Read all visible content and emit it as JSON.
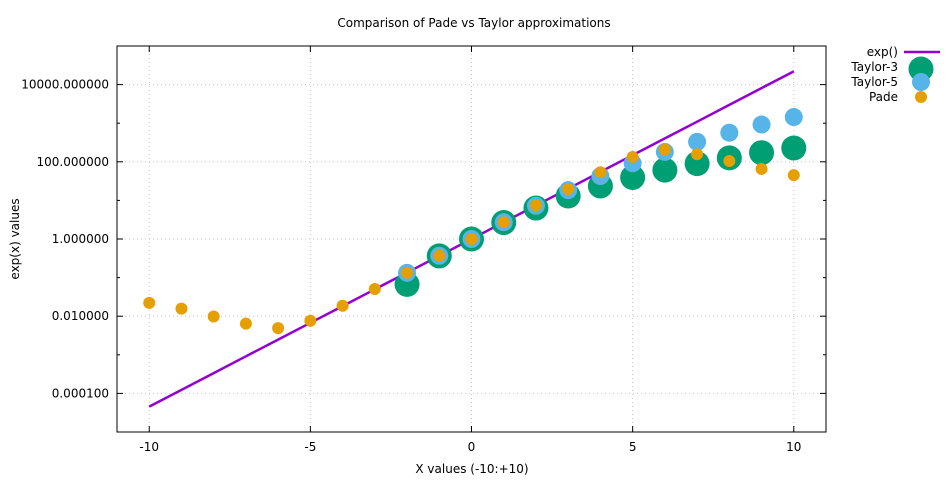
{
  "chart_data": {
    "type": "scatter",
    "title": "Comparison of Pade vs Taylor approximations",
    "xlabel": "X values (-10:+10)",
    "ylabel": "exp(x) values",
    "xlim": [
      -11,
      11
    ],
    "ylim": [
      1e-05,
      100000
    ],
    "yscale": "log",
    "grid": true,
    "legend_position": "top-right outside",
    "x_ticks": [
      -10,
      -5,
      0,
      5,
      10
    ],
    "x_tick_labels": [
      "-10",
      "-5",
      "0",
      "5",
      "10"
    ],
    "y_ticks": [
      0.0001,
      0.01,
      1,
      100,
      10000
    ],
    "y_tick_labels": [
      "0.000100",
      "0.010000",
      "1.000000",
      "100.000000",
      "10000.000000"
    ],
    "series": [
      {
        "name": "exp()",
        "type": "line",
        "color": "#9400d3",
        "x": [
          -10,
          -9,
          -8,
          -7,
          -6,
          -5,
          -4,
          -3,
          -2,
          -1,
          0,
          1,
          2,
          3,
          4,
          5,
          6,
          7,
          8,
          9,
          10
        ],
        "y": [
          4.54e-05,
          0.000123,
          0.000335,
          0.000912,
          0.00248,
          0.00674,
          0.0183,
          0.0498,
          0.135,
          0.368,
          1,
          2.718,
          7.389,
          20.09,
          54.6,
          148.4,
          403.4,
          1096.6,
          2981,
          8103,
          22026
        ]
      },
      {
        "name": "Taylor-3",
        "type": "scatter",
        "color": "#009e73",
        "marker_size": "large",
        "x": [
          -2,
          -1,
          0,
          1,
          2,
          3,
          4,
          5,
          6,
          7,
          8,
          9,
          10
        ],
        "y": [
          0.0667,
          0.365,
          1,
          2.667,
          6.333,
          13,
          23.67,
          39.33,
          61,
          89.67,
          126.3,
          172,
          227.7
        ]
      },
      {
        "name": "Taylor-5",
        "type": "scatter",
        "color": "#56b4e9",
        "marker_size": "medium",
        "x": [
          -2,
          -1,
          0,
          1,
          2,
          3,
          4,
          5,
          6,
          7,
          8,
          9,
          10
        ],
        "y": [
          0.133,
          0.367,
          1,
          2.717,
          7.267,
          18.4,
          42.87,
          91.42,
          179.8,
          329.2,
          566.4,
          924.2,
          1442.3
        ]
      },
      {
        "name": "Pade",
        "type": "scatter",
        "color": "#e69f00",
        "marker_size": "small",
        "x": [
          -10,
          -9,
          -8,
          -7,
          -6,
          -5,
          -4,
          -3,
          -2,
          -1,
          0,
          1,
          2,
          3,
          4,
          5,
          6,
          7,
          8,
          9,
          10
        ],
        "y": [
          0.0222,
          0.0157,
          0.0098,
          0.0064,
          0.0049,
          0.0076,
          0.0186,
          0.0506,
          0.1333,
          0.3684,
          1,
          2.714,
          7.5,
          19.77,
          53.67,
          133,
          206.1,
          157.2,
          104.9,
          65.31,
          45
        ]
      }
    ]
  }
}
